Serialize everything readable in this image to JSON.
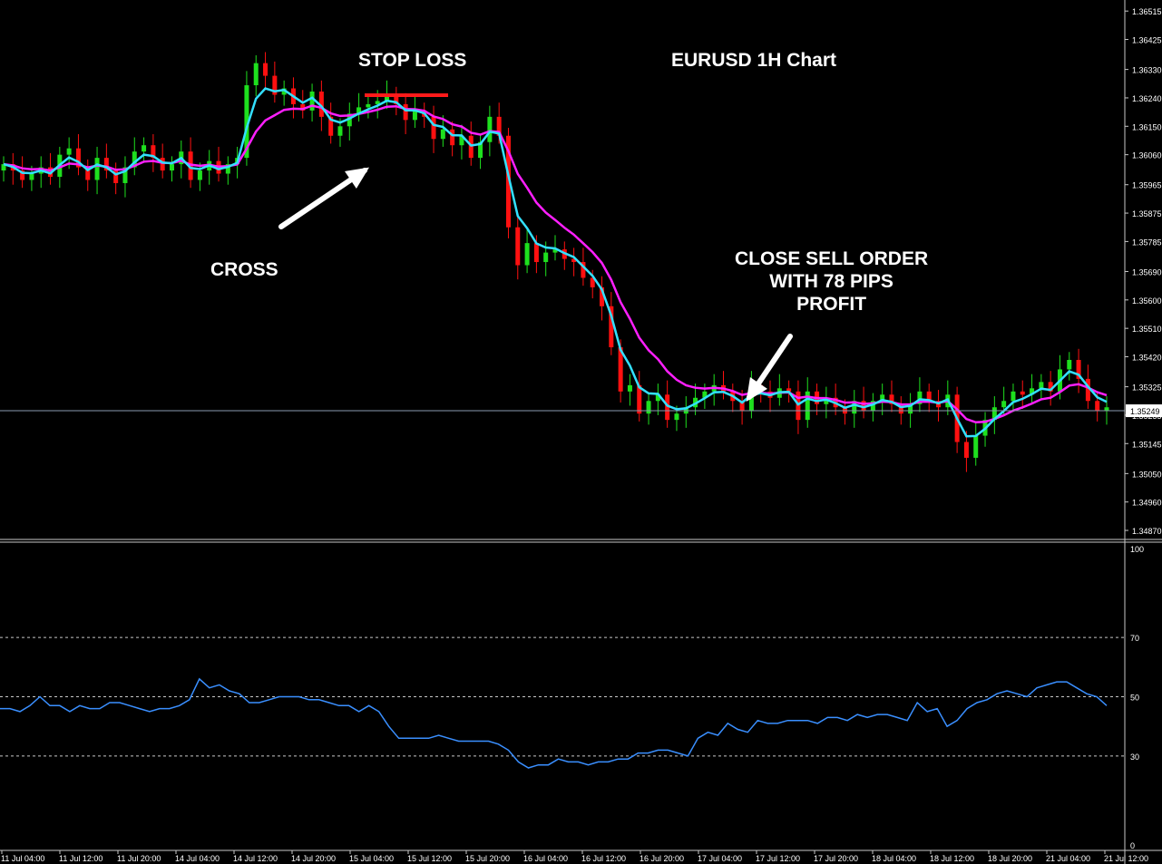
{
  "chart_data": [
    {
      "type": "candlestick",
      "title": "EURUSD 1H Chart",
      "price_scale": {
        "ticks": [
          "1.36515",
          "1.36425",
          "1.36330",
          "1.36240",
          "1.36150",
          "1.36060",
          "1.35965",
          "1.35875",
          "1.35785",
          "1.35690",
          "1.35600",
          "1.35510",
          "1.35420",
          "1.35325",
          "1.35235",
          "1.35145",
          "1.35050",
          "1.34960",
          "1.34870"
        ],
        "current_price": "1.35249",
        "ylim": [
          1.3485,
          1.3655
        ]
      },
      "time_labels": [
        "11 Jul 04:00",
        "11 Jul 12:00",
        "11 Jul 20:00",
        "14 Jul 04:00",
        "14 Jul 12:00",
        "14 Jul 20:00",
        "15 Jul 04:00",
        "15 Jul 12:00",
        "15 Jul 20:00",
        "16 Jul 04:00",
        "16 Jul 12:00",
        "16 Jul 20:00",
        "17 Jul 04:00",
        "17 Jul 12:00",
        "17 Jul 20:00",
        "18 Jul 04:00",
        "18 Jul 12:00",
        "18 Jul 20:00",
        "21 Jul 04:00",
        "21 Jul 12:00"
      ],
      "close_series": [
        1.3603,
        1.3601,
        1.3598,
        1.36,
        1.3602,
        1.3599,
        1.3606,
        1.3608,
        1.3602,
        1.3598,
        1.3605,
        1.3601,
        1.3597,
        1.3602,
        1.3607,
        1.3609,
        1.3605,
        1.3601,
        1.3603,
        1.3607,
        1.3598,
        1.3601,
        1.3604,
        1.36,
        1.3603,
        1.3605,
        1.3628,
        1.3635,
        1.3631,
        1.3625,
        1.3627,
        1.3622,
        1.362,
        1.3626,
        1.3618,
        1.3612,
        1.3615,
        1.3619,
        1.3621,
        1.3622,
        1.3623,
        1.3625,
        1.3622,
        1.3617,
        1.362,
        1.3618,
        1.3611,
        1.3614,
        1.3609,
        1.3612,
        1.3605,
        1.361,
        1.3618,
        1.3612,
        1.3583,
        1.3571,
        1.3578,
        1.3572,
        1.3575,
        1.3576,
        1.3573,
        1.3572,
        1.3567,
        1.3564,
        1.3558,
        1.3545,
        1.3531,
        1.3533,
        1.3524,
        1.3528,
        1.353,
        1.3522,
        1.3524,
        1.3526,
        1.3529,
        1.3531,
        1.3533,
        1.3531,
        1.3528,
        1.3525,
        1.3533,
        1.3531,
        1.3529,
        1.3532,
        1.3531,
        1.3522,
        1.3531,
        1.3527,
        1.3529,
        1.3526,
        1.3524,
        1.3528,
        1.3525,
        1.3528,
        1.353,
        1.3527,
        1.3524,
        1.3527,
        1.3531,
        1.3528,
        1.3526,
        1.353,
        1.3515,
        1.351,
        1.3517,
        1.3522,
        1.3526,
        1.3528,
        1.3531,
        1.353,
        1.3532,
        1.3534,
        1.3531,
        1.3538,
        1.3541,
        1.3535,
        1.3528,
        1.3525,
        1.3526
      ],
      "moving_averages": [
        {
          "color": "#33e0ff",
          "period": "fast"
        },
        {
          "color": "#ff1fff",
          "period": "slow"
        }
      ],
      "annotations": {
        "stop_loss": "STOP LOSS",
        "cross": "CROSS",
        "close": "CLOSE SELL ORDER\nWITH 78 PIPS\nPROFIT"
      },
      "colors": {
        "bull": "#1ee01e",
        "bear": "#ff1010",
        "current_price_line": "#8a9ab0",
        "stop_loss_line": "#ff1a1a"
      }
    },
    {
      "type": "line",
      "title": "",
      "ylim": [
        0,
        100
      ],
      "levels": [
        30,
        50,
        70
      ],
      "ticks": [
        "100",
        "70",
        "50",
        "30",
        "0"
      ],
      "values": [
        46,
        46,
        45,
        47,
        50,
        47,
        47,
        45,
        47,
        46,
        46,
        48,
        48,
        47,
        46,
        45,
        46,
        46,
        47,
        49,
        56,
        53,
        54,
        52,
        51,
        48,
        48,
        49,
        50,
        50,
        50,
        49,
        49,
        48,
        47,
        47,
        45,
        47,
        45,
        40,
        36,
        36,
        36,
        36,
        37,
        36,
        35,
        35,
        35,
        35,
        34,
        32,
        28,
        26,
        27,
        27,
        29,
        28,
        28,
        27,
        28,
        28,
        29,
        29,
        31,
        31,
        32,
        32,
        31,
        30,
        36,
        38,
        37,
        41,
        39,
        38,
        42,
        41,
        41,
        42,
        42,
        42,
        41,
        43,
        43,
        42,
        44,
        43,
        44,
        44,
        43,
        42,
        48,
        45,
        46,
        40,
        42,
        46,
        48,
        49,
        51,
        52,
        51,
        50,
        53,
        54,
        55,
        55,
        53,
        51,
        50,
        47
      ],
      "color": "#3a8fff"
    }
  ]
}
